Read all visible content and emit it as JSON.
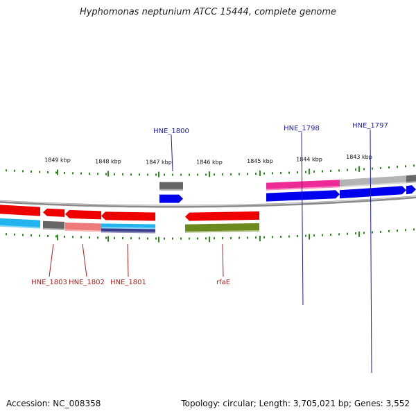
{
  "title": "Hyphomonas neptunium ATCC 15444, complete genome",
  "footer": {
    "accession": "Accession: NC_008358",
    "topology": "Topology: circular; Length: 3,705,021 bp; Genes: 3,552"
  },
  "scale": {
    "tick_labels": [
      "1849 kbp",
      "1848 kbp",
      "1847 kbp",
      "1846 kbp",
      "1845 kbp",
      "1844 kbp",
      "1843 kbp"
    ]
  },
  "gene_labels": {
    "top": [
      "HNE_1800",
      "HNE_1798",
      "HNE_1797"
    ],
    "bottom": [
      "HNE_1803",
      "HNE_1802",
      "HNE_1801",
      "rfaE"
    ]
  },
  "colors": {
    "backbone": "#8a8a8a",
    "tick": "#2a8a1a",
    "forward_cds": "#0000ee",
    "reverse_cds": "#ee0000",
    "cog_magenta": "#ee2a96",
    "cog_grey": "#b4b4b4",
    "cog_dark_grey": "#666666",
    "cog_cyan": "#22b4ee",
    "cog_pink": "#ee7a7a",
    "cog_navy": "#3a3a8a",
    "cog_olive": "#6b8a1e",
    "label_top": "#1a1ab4",
    "label_bottom": "#b41a1a"
  }
}
